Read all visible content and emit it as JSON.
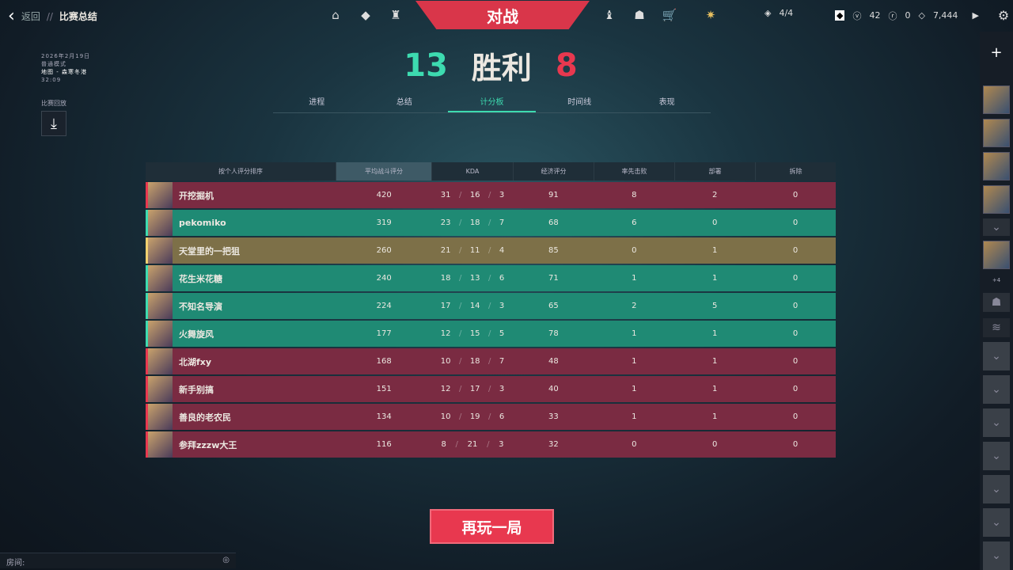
{
  "header": {
    "back": "返回",
    "sep": "//",
    "title": "比赛总结"
  },
  "info": {
    "date": "2026年2月19日",
    "mode": "普通模式",
    "map": "地图 - 森寒冬港",
    "duration": "32:09",
    "replay_label": "比赛回放"
  },
  "nav": {
    "battle": "对战"
  },
  "topbar": {
    "party": "4/4",
    "vp": "42",
    "rp": "0",
    "kp": "7,444"
  },
  "result": {
    "our": "13",
    "text": "胜利",
    "their": "8"
  },
  "tabs": [
    "进程",
    "总结",
    "计分板",
    "时间线",
    "表现"
  ],
  "active_tab": 2,
  "table": {
    "headers": [
      "按个人评分排序",
      "平均战斗评分",
      "KDA",
      "经济评分",
      "率先击败",
      "部署",
      "拆除"
    ],
    "rows": [
      {
        "team": "red",
        "name": "开挖掘机",
        "acs": "420",
        "k": "31",
        "d": "16",
        "a": "3",
        "econ": "91",
        "fb": "8",
        "plant": "2",
        "defuse": "0"
      },
      {
        "team": "green",
        "name": "pekomiko",
        "acs": "319",
        "k": "23",
        "d": "18",
        "a": "7",
        "econ": "68",
        "fb": "6",
        "plant": "0",
        "defuse": "0"
      },
      {
        "team": "gold",
        "name": "天堂里的一把狙",
        "acs": "260",
        "k": "21",
        "d": "11",
        "a": "4",
        "econ": "85",
        "fb": "0",
        "plant": "1",
        "defuse": "0"
      },
      {
        "team": "green",
        "name": "花生米花糖",
        "acs": "240",
        "k": "18",
        "d": "13",
        "a": "6",
        "econ": "71",
        "fb": "1",
        "plant": "1",
        "defuse": "0"
      },
      {
        "team": "green",
        "name": "不知名导演",
        "acs": "224",
        "k": "17",
        "d": "14",
        "a": "3",
        "econ": "65",
        "fb": "2",
        "plant": "5",
        "defuse": "0"
      },
      {
        "team": "green",
        "name": "火舞旋风",
        "acs": "177",
        "k": "12",
        "d": "15",
        "a": "5",
        "econ": "78",
        "fb": "1",
        "plant": "1",
        "defuse": "0"
      },
      {
        "team": "red",
        "name": "北湖fxy",
        "acs": "168",
        "k": "10",
        "d": "18",
        "a": "7",
        "econ": "48",
        "fb": "1",
        "plant": "1",
        "defuse": "0"
      },
      {
        "team": "red",
        "name": "新手别搞",
        "acs": "151",
        "k": "12",
        "d": "17",
        "a": "3",
        "econ": "40",
        "fb": "1",
        "plant": "1",
        "defuse": "0"
      },
      {
        "team": "red",
        "name": "善良的老农民",
        "acs": "134",
        "k": "10",
        "d": "19",
        "a": "6",
        "econ": "33",
        "fb": "1",
        "plant": "1",
        "defuse": "0"
      },
      {
        "team": "red",
        "name": "参拜zzzw大王",
        "acs": "116",
        "k": "8",
        "d": "21",
        "a": "3",
        "econ": "32",
        "fb": "0",
        "plant": "0",
        "defuse": "0"
      }
    ]
  },
  "play_again": "再玩一局",
  "room_label": "房间:",
  "sidebar": {
    "more": "+4"
  },
  "colors": {
    "accent_green": "#3ddbb0",
    "accent_red": "#e8384f",
    "red_row": "#7a2b42",
    "green_row": "#1f8a74",
    "gold_row": "#7d7048"
  }
}
